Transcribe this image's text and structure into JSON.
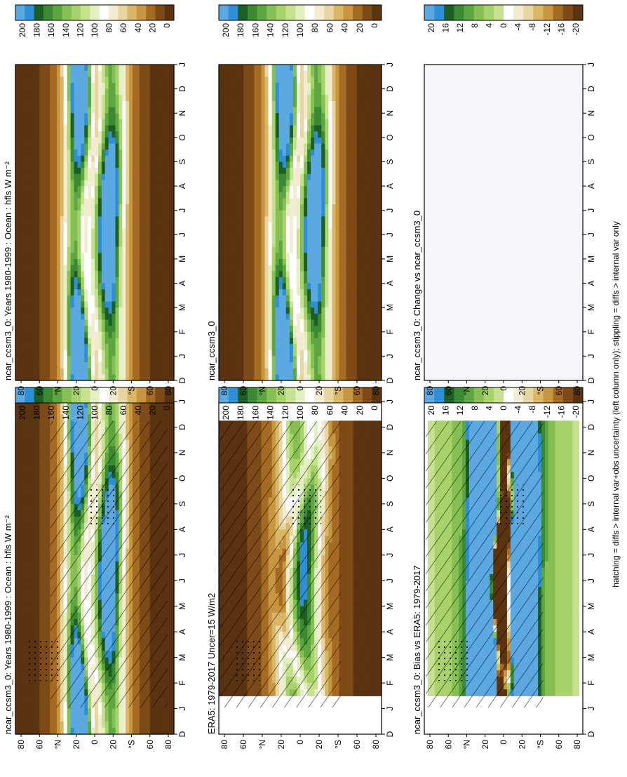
{
  "footer_note": "hatching = diffs > internal var+obs uncertainty (left column only); stippling = diffs > internal var only",
  "month_labels": [
    "D",
    "J",
    "F",
    "M",
    "A",
    "M",
    "J",
    "J",
    "A",
    "S",
    "O",
    "N",
    "D",
    "J"
  ],
  "lat_labels": [
    "80",
    "60",
    "°N",
    "20",
    "0",
    "20",
    "°S",
    "60",
    "80"
  ],
  "colorbar_abs": [
    "200",
    "180",
    "160",
    "140",
    "120",
    "100",
    "80",
    "60",
    "40",
    "20",
    "0"
  ],
  "colorbar_diff": [
    "20",
    "16",
    "12",
    "8",
    "4",
    "0",
    "-4",
    "-8",
    "-12",
    "-16",
    "-20"
  ],
  "colors_abs": [
    "#5ba9e0",
    "#2e8ed6",
    "#1c5e24",
    "#3a8a33",
    "#5ea641",
    "#86c055",
    "#a8d26a",
    "#c6e28e",
    "#e2f0c2",
    "#ffffff",
    "#f4ecd2",
    "#e8d6a2",
    "#d9b767",
    "#c89640",
    "#a56b22",
    "#7e4a17",
    "#5a3310"
  ],
  "colors_diff": [
    "#5ba9e0",
    "#2e8ed6",
    "#1c5e24",
    "#3a8a33",
    "#5ea641",
    "#86c055",
    "#a8d26a",
    "#c6e28e",
    "#ffffff",
    "#f4ecd2",
    "#e8d6a2",
    "#d9b767",
    "#c89640",
    "#a56b22",
    "#7e4a17",
    "#5a3310"
  ],
  "panels": [
    {
      "title": "ncar_ccsm3_0: Years 1980-1999 : Ocean : hfls W m⁻²",
      "field": "model",
      "scale": "abs",
      "hatch": true,
      "stipple": true
    },
    {
      "title": "ncar_ccsm3_0: Years 1980-1999 : Ocean : hfls W m⁻²",
      "field": "model",
      "scale": "abs",
      "hatch": false,
      "stipple": false
    },
    {
      "title": "ERA5: 1979-2017 Uncer=15 W/m2",
      "field": "era5",
      "scale": "abs",
      "hatch": true,
      "stipple": true
    },
    {
      "title": "ncar_ccsm3_0",
      "field": "model",
      "scale": "abs",
      "hatch": false,
      "stipple": false
    },
    {
      "title": "ncar_ccsm3_0: Bias vs ERA5: 1979-2017",
      "field": "bias",
      "scale": "diff",
      "hatch": true,
      "stipple": true
    },
    {
      "title": "ncar_ccsm3_0: Change vs ncar_ccsm3_0",
      "field": "empty",
      "scale": "diff",
      "hatch": false,
      "stipple": false
    }
  ],
  "chart_data": {
    "type": "heatmap",
    "variable": "hfls",
    "units": "W m⁻²",
    "x_categories": [
      "D",
      "J",
      "F",
      "M",
      "A",
      "M",
      "J",
      "J",
      "A",
      "S",
      "O",
      "N",
      "D",
      "J"
    ],
    "y_range": [
      -90,
      90
    ],
    "abs_levels": [
      0,
      20,
      40,
      60,
      80,
      100,
      120,
      140,
      160,
      180,
      200
    ],
    "diff_levels": [
      -20,
      -16,
      -12,
      -8,
      -4,
      0,
      4,
      8,
      12,
      16,
      20
    ]
  }
}
